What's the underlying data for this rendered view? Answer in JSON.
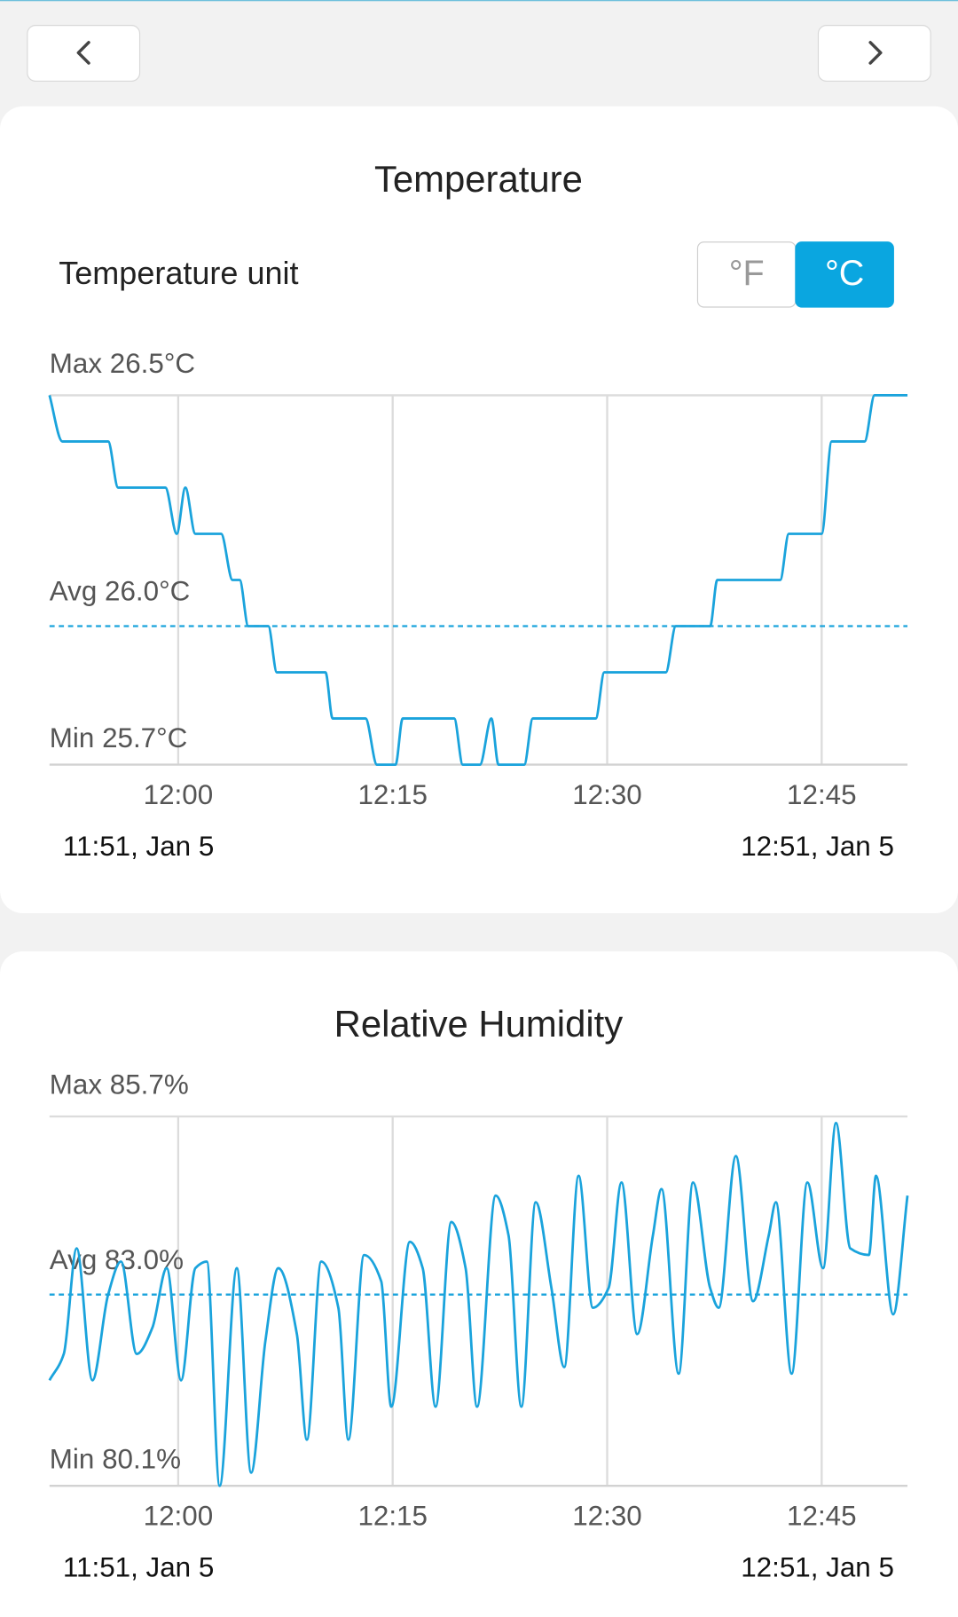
{
  "chart_data": [
    {
      "type": "line",
      "title": "Temperature",
      "unit_label": "Temperature unit",
      "unit_options": [
        "°F",
        "°C"
      ],
      "selected_unit": 1,
      "color": "#1aa3dc",
      "max": {
        "value": 26.5,
        "label": "Max 26.5°C"
      },
      "avg": {
        "value": 26.0,
        "label": "Avg 26.0°C"
      },
      "min": {
        "value": 25.7,
        "label": "Min 25.7°C"
      },
      "ylim": [
        25.7,
        26.5
      ],
      "xlim": [
        {
          "value": 0,
          "label": "11:51, Jan 5"
        },
        {
          "value": 60,
          "label": "12:51, Jan 5"
        }
      ],
      "xticks": [
        {
          "value": 9,
          "label": "12:00"
        },
        {
          "value": 24,
          "label": "12:15"
        },
        {
          "value": 39,
          "label": "12:30"
        },
        {
          "value": 54,
          "label": "12:45"
        }
      ],
      "x": [
        0,
        0.9,
        4.1,
        4.8,
        8.1,
        8.9,
        9.5,
        10.2,
        12.0,
        12.8,
        13.3,
        13.9,
        15.3,
        15.9,
        19.3,
        19.8,
        22.1,
        22.9,
        24.2,
        24.7,
        28.3,
        28.9,
        30.1,
        30.9,
        31.4,
        33.2,
        33.8,
        38.2,
        38.8,
        43.1,
        43.8,
        46.2,
        46.7,
        51.1,
        51.7,
        54.0,
        54.7,
        57.0,
        57.7,
        60.0
      ],
      "values": [
        26.5,
        26.4,
        26.4,
        26.3,
        26.3,
        26.2,
        26.3,
        26.2,
        26.2,
        26.1,
        26.1,
        26.0,
        26.0,
        25.9,
        25.9,
        25.8,
        25.8,
        25.7,
        25.7,
        25.8,
        25.8,
        25.7,
        25.7,
        25.8,
        25.7,
        25.7,
        25.8,
        25.8,
        25.9,
        25.9,
        26.0,
        26.0,
        26.1,
        26.1,
        26.2,
        26.2,
        26.4,
        26.4,
        26.5,
        26.5
      ]
    },
    {
      "type": "line",
      "title": "Relative Humidity",
      "color": "#1aa3dc",
      "max": {
        "value": 85.7,
        "label": "Max 85.7%"
      },
      "avg": {
        "value": 83.0,
        "label": "Avg 83.0%"
      },
      "min": {
        "value": 80.1,
        "label": "Min 80.1%"
      },
      "ylim": [
        80.1,
        85.7
      ],
      "xlim": [
        {
          "value": 0,
          "label": "11:51, Jan 5"
        },
        {
          "value": 60,
          "label": "12:51, Jan 5"
        }
      ],
      "xticks": [
        {
          "value": 9,
          "label": "12:00"
        },
        {
          "value": 24,
          "label": "12:15"
        },
        {
          "value": 39,
          "label": "12:30"
        },
        {
          "value": 54,
          "label": "12:45"
        }
      ],
      "x": [
        0,
        1.0,
        1.9,
        3.0,
        4.1,
        5.0,
        6.1,
        7.2,
        8.2,
        9.2,
        10.2,
        11.0,
        11.9,
        13.1,
        14.1,
        15.1,
        16.0,
        17.3,
        18.0,
        19.0,
        20.2,
        20.9,
        22.0,
        23.2,
        23.9,
        25.2,
        26.1,
        27.0,
        28.1,
        29.1,
        29.9,
        31.2,
        32.1,
        33.0,
        34.0,
        35.1,
        36.0,
        37.0,
        38.0,
        39.1,
        40.0,
        41.1,
        42.2,
        42.8,
        44.0,
        45.0,
        46.2,
        46.8,
        48.0,
        49.2,
        50.3,
        50.8,
        51.9,
        53.0,
        54.1,
        55.0,
        56.0,
        57.3,
        57.8,
        59.0,
        60.0
      ],
      "values": [
        81.7,
        82.1,
        83.7,
        81.7,
        83.0,
        83.5,
        82.1,
        82.5,
        83.4,
        81.7,
        83.4,
        83.5,
        80.1,
        83.4,
        80.3,
        82.3,
        83.4,
        82.4,
        80.8,
        83.5,
        82.8,
        80.8,
        83.6,
        83.2,
        81.3,
        83.8,
        83.4,
        81.3,
        84.1,
        83.4,
        81.3,
        84.5,
        83.9,
        81.3,
        84.4,
        83.1,
        81.9,
        84.8,
        82.8,
        83.1,
        84.7,
        82.4,
        83.9,
        84.6,
        81.8,
        84.7,
        83.1,
        82.8,
        85.1,
        82.9,
        83.9,
        84.4,
        81.8,
        84.7,
        83.4,
        85.6,
        83.7,
        83.6,
        84.8,
        82.7,
        84.5
      ]
    }
  ]
}
